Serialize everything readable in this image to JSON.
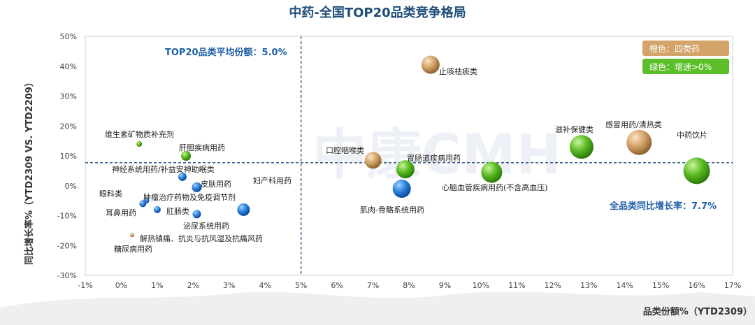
{
  "chart_data": {
    "type": "scatter",
    "title": "中药-全国TOP20品类竞争格局",
    "xlabel": "品类份额%（YTD2309）",
    "ylabel": "同比增长率%（YTD2309 VS. YTD2209）",
    "xlim": [
      -1,
      17
    ],
    "ylim": [
      -30,
      50
    ],
    "xticks": [
      -1,
      0,
      1,
      2,
      3,
      4,
      5,
      6,
      7,
      8,
      9,
      10,
      11,
      12,
      13,
      14,
      15,
      16,
      17
    ],
    "yticks": [
      -30,
      -20,
      -10,
      0,
      10,
      20,
      30,
      40,
      50
    ],
    "x_unit": "%",
    "y_unit": "%",
    "grid": false,
    "reference_lines": {
      "vertical": {
        "x": 5.0,
        "label": "TOP20品类平均份额：5.0%"
      },
      "horizontal": {
        "y": 7.7,
        "label": "全品类同比增长率：7.7%"
      }
    },
    "legend": {
      "placement": "top-right",
      "entries": [
        {
          "label": "橙色：四类药",
          "color": "#d4a36a"
        },
        {
          "label": "绿色：增速>0%",
          "color": "#5cbf2a"
        }
      ]
    },
    "points": [
      {
        "label": "止咳祛痰类",
        "x": 8.6,
        "y": 40.5,
        "color": "orange",
        "r": 13
      },
      {
        "label": "维生素矿物质补充剂",
        "x": 0.5,
        "y": 14.0,
        "color": "green",
        "r": 4
      },
      {
        "label": "肝胆疾病用药",
        "x": 1.8,
        "y": 10.0,
        "color": "green",
        "r": 7
      },
      {
        "label": "神经系统用药/补益安神助眠类",
        "x": 1.7,
        "y": 3.0,
        "color": "blue",
        "r": 6
      },
      {
        "label": "皮肤用药",
        "x": 2.1,
        "y": -0.5,
        "color": "blue",
        "r": 7
      },
      {
        "label": "妇产科用药",
        "x": 3.4,
        "y": -8.0,
        "color": "blue",
        "r": 9
      },
      {
        "label": "眼科类",
        "x": 0.6,
        "y": -6.0,
        "color": "blue",
        "r": 5
      },
      {
        "label": "肿瘤治疗药物及免疫调节剂",
        "x": 0.7,
        "y": -5.0,
        "color": "blue",
        "r": 4
      },
      {
        "label": "耳鼻用药",
        "x": 1.0,
        "y": -8.0,
        "color": "blue",
        "r": 5
      },
      {
        "label": "肛肠类",
        "x": 2.1,
        "y": -9.5,
        "color": "blue",
        "r": 6
      },
      {
        "label": "泌尿系统用药",
        "x": 2.1,
        "y": -9.5,
        "color": "blue",
        "r": 0
      },
      {
        "label": "解热镇痛、抗炎与抗风湿及抗痛风药",
        "x": 0.3,
        "y": -16.5,
        "color": "orange",
        "r": 3
      },
      {
        "label": "糖尿病用药",
        "x": 0.3,
        "y": -16.5,
        "color": "blue",
        "r": 0
      },
      {
        "label": "口腔咽喉类",
        "x": 7.0,
        "y": 8.5,
        "color": "orange",
        "r": 12
      },
      {
        "label": "胃肠道疾病用药",
        "x": 7.9,
        "y": 5.5,
        "color": "green",
        "r": 13
      },
      {
        "label": "肌肉-骨骼系统用药",
        "x": 7.8,
        "y": -1.0,
        "color": "blue",
        "r": 13
      },
      {
        "label": "心脑血管疾病用药(不含高血压)",
        "x": 10.3,
        "y": 4.5,
        "color": "green",
        "r": 15
      },
      {
        "label": "滋补保健类",
        "x": 12.8,
        "y": 13.0,
        "color": "green",
        "r": 17
      },
      {
        "label": "感冒用药/清热类",
        "x": 14.4,
        "y": 14.5,
        "color": "orange",
        "r": 18
      },
      {
        "label": "中药饮片",
        "x": 16.0,
        "y": 5.0,
        "color": "green",
        "r": 19
      }
    ]
  },
  "watermark": "中康CMH"
}
